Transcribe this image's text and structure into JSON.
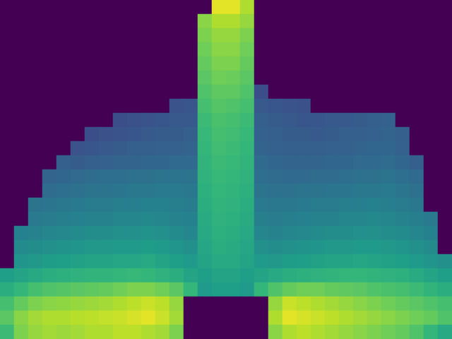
{
  "chart_data": {
    "type": "heatmap",
    "tick_labels": false,
    "zlim": [
      0,
      100
    ],
    "cells": [
      [
        0,
        0,
        0,
        0,
        0,
        0,
        0,
        0,
        0,
        0,
        0,
        0,
        0,
        0,
        0,
        96,
        96,
        88,
        0,
        0,
        0,
        0,
        0,
        0,
        0,
        0,
        0,
        0,
        0,
        0,
        0,
        0
      ],
      [
        0,
        0,
        0,
        0,
        0,
        0,
        0,
        0,
        0,
        0,
        0,
        0,
        0,
        0,
        82,
        88,
        88,
        84,
        0,
        0,
        0,
        0,
        0,
        0,
        0,
        0,
        0,
        0,
        0,
        0,
        0,
        0
      ],
      [
        0,
        0,
        0,
        0,
        0,
        0,
        0,
        0,
        0,
        0,
        0,
        0,
        0,
        0,
        80,
        84,
        84,
        80,
        0,
        0,
        0,
        0,
        0,
        0,
        0,
        0,
        0,
        0,
        0,
        0,
        0,
        0
      ],
      [
        0,
        0,
        0,
        0,
        0,
        0,
        0,
        0,
        0,
        0,
        0,
        0,
        0,
        0,
        78,
        82,
        82,
        78,
        0,
        0,
        0,
        0,
        0,
        0,
        0,
        0,
        0,
        0,
        0,
        0,
        0,
        0
      ],
      [
        0,
        0,
        0,
        0,
        0,
        0,
        0,
        0,
        0,
        0,
        0,
        0,
        0,
        0,
        76,
        80,
        80,
        76,
        0,
        0,
        0,
        0,
        0,
        0,
        0,
        0,
        0,
        0,
        0,
        0,
        0,
        0
      ],
      [
        0,
        0,
        0,
        0,
        0,
        0,
        0,
        0,
        0,
        0,
        0,
        0,
        0,
        0,
        74,
        78,
        77,
        74,
        0,
        0,
        0,
        0,
        0,
        0,
        0,
        0,
        0,
        0,
        0,
        0,
        0,
        0
      ],
      [
        0,
        0,
        0,
        0,
        0,
        0,
        0,
        0,
        0,
        0,
        0,
        0,
        0,
        0,
        72,
        75,
        75,
        72,
        24,
        0,
        0,
        0,
        0,
        0,
        0,
        0,
        0,
        0,
        0,
        0,
        0,
        0
      ],
      [
        0,
        0,
        0,
        0,
        0,
        0,
        0,
        0,
        0,
        0,
        0,
        0,
        26,
        27,
        70,
        73,
        72,
        70,
        28,
        27,
        26,
        25,
        0,
        0,
        0,
        0,
        0,
        0,
        0,
        0,
        0,
        0
      ],
      [
        0,
        0,
        0,
        0,
        0,
        0,
        0,
        0,
        24,
        25,
        26,
        27,
        28,
        28,
        68,
        71,
        70,
        68,
        30,
        29,
        28,
        27,
        27,
        28,
        28,
        29,
        30,
        31,
        0,
        0,
        0,
        0
      ],
      [
        0,
        0,
        0,
        0,
        0,
        0,
        24,
        25,
        26,
        27,
        28,
        29,
        29,
        30,
        67,
        70,
        69,
        67,
        31,
        30,
        29,
        29,
        28,
        29,
        30,
        30,
        31,
        32,
        30,
        0,
        0,
        0
      ],
      [
        0,
        0,
        0,
        0,
        0,
        26,
        27,
        28,
        29,
        30,
        30,
        31,
        31,
        32,
        66,
        69,
        68,
        66,
        32,
        31,
        30,
        30,
        30,
        31,
        31,
        32,
        33,
        33,
        31,
        0,
        0,
        0
      ],
      [
        0,
        0,
        0,
        0,
        30,
        29,
        30,
        31,
        32,
        32,
        33,
        33,
        34,
        34,
        65,
        68,
        67,
        65,
        34,
        33,
        32,
        32,
        32,
        33,
        33,
        34,
        34,
        35,
        33,
        30,
        0,
        0
      ],
      [
        0,
        0,
        0,
        32,
        33,
        34,
        35,
        36,
        36,
        37,
        37,
        38,
        38,
        38,
        64,
        67,
        66,
        64,
        36,
        35,
        34,
        34,
        35,
        35,
        36,
        37,
        37,
        38,
        36,
        34,
        0,
        0
      ],
      [
        0,
        0,
        0,
        35,
        36,
        37,
        38,
        38,
        39,
        40,
        40,
        41,
        41,
        40,
        63,
        66,
        65,
        63,
        38,
        37,
        37,
        38,
        38,
        39,
        39,
        40,
        40,
        41,
        39,
        37,
        0,
        0
      ],
      [
        0,
        0,
        38,
        39,
        40,
        41,
        42,
        42,
        43,
        43,
        44,
        44,
        43,
        42,
        62,
        65,
        64,
        62,
        41,
        40,
        40,
        41,
        42,
        42,
        43,
        43,
        44,
        43,
        42,
        40,
        0,
        0
      ],
      [
        0,
        0,
        41,
        42,
        43,
        44,
        45,
        45,
        46,
        46,
        47,
        46,
        45,
        44,
        61,
        64,
        63,
        61,
        43,
        42,
        43,
        44,
        45,
        45,
        46,
        46,
        47,
        46,
        45,
        43,
        41,
        0
      ],
      [
        0,
        44,
        45,
        46,
        47,
        48,
        49,
        49,
        50,
        50,
        51,
        50,
        48,
        46,
        60,
        63,
        62,
        60,
        46,
        45,
        46,
        47,
        48,
        49,
        49,
        50,
        50,
        49,
        48,
        46,
        44,
        0
      ],
      [
        0,
        48,
        49,
        50,
        51,
        52,
        53,
        53,
        54,
        54,
        55,
        54,
        52,
        50,
        59,
        62,
        61,
        59,
        50,
        49,
        50,
        51,
        52,
        53,
        53,
        54,
        54,
        53,
        52,
        50,
        48,
        0
      ],
      [
        0,
        52,
        53,
        55,
        56,
        57,
        58,
        58,
        59,
        59,
        60,
        58,
        56,
        54,
        58,
        60,
        60,
        58,
        54,
        53,
        55,
        56,
        57,
        58,
        58,
        59,
        58,
        57,
        56,
        54,
        52,
        50
      ],
      [
        56,
        58,
        60,
        62,
        63,
        64,
        65,
        65,
        66,
        67,
        66,
        64,
        62,
        58,
        56,
        58,
        58,
        56,
        58,
        60,
        62,
        63,
        64,
        65,
        66,
        66,
        65,
        64,
        63,
        61,
        58,
        56
      ],
      [
        62,
        66,
        70,
        72,
        73,
        74,
        75,
        76,
        78,
        80,
        80,
        78,
        74,
        66,
        54,
        56,
        56,
        54,
        66,
        72,
        76,
        78,
        78,
        76,
        75,
        74,
        72,
        71,
        70,
        68,
        65,
        62
      ],
      [
        70,
        76,
        80,
        82,
        83,
        84,
        85,
        86,
        88,
        90,
        92,
        90,
        84,
        0,
        0,
        0,
        0,
        0,
        0,
        84,
        92,
        90,
        88,
        86,
        84,
        82,
        80,
        78,
        76,
        74,
        72,
        70
      ],
      [
        74,
        82,
        86,
        88,
        88,
        89,
        90,
        91,
        92,
        94,
        96,
        92,
        86,
        0,
        0,
        0,
        0,
        0,
        0,
        88,
        96,
        94,
        92,
        90,
        88,
        86,
        84,
        82,
        80,
        78,
        76,
        72
      ],
      [
        68,
        80,
        84,
        86,
        85,
        86,
        88,
        88,
        90,
        90,
        88,
        86,
        80,
        0,
        0,
        0,
        0,
        0,
        0,
        82,
        88,
        90,
        88,
        86,
        84,
        82,
        80,
        78,
        76,
        72,
        66,
        60
      ]
    ]
  }
}
